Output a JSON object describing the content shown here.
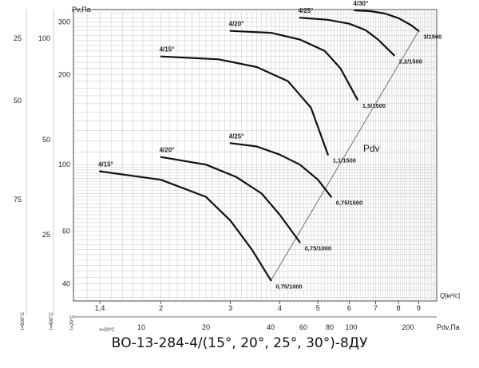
{
  "chart_data": {
    "type": "line",
    "title": "ВО-13-284-4/(15°, 20°, 25°, 30°)-8ДУ",
    "ylabel": "Pv,Па",
    "xlabel": "Q[м³/с]",
    "x2label": "Pdv,Па",
    "pdv_label": "Pdv",
    "xscale": "log",
    "yscale": "log",
    "xlim": [
      1.2,
      10
    ],
    "ylim": [
      35,
      330
    ],
    "x_ticks": [
      "1,4",
      "2",
      "3",
      "4",
      "5",
      "6",
      "7",
      "8",
      "9"
    ],
    "y_ticks": [
      "40",
      "60",
      "100",
      "200",
      "300"
    ],
    "y_ticks_small": [
      "25",
      "50",
      "100"
    ],
    "pdv_ticks": [
      "10",
      "20",
      "40",
      "60",
      "80",
      "100",
      "200"
    ],
    "far_axis_ticks": [
      "25",
      "50",
      "75"
    ],
    "temps": [
      "t=600°C",
      "t=400°C",
      "t=20°C",
      "t=20°C"
    ],
    "grid": true,
    "series": [
      {
        "name": "4/15°",
        "x": [
          1.4,
          2.0,
          2.6,
          3.0,
          3.4,
          3.8
        ],
        "y": [
          95,
          89,
          78,
          65,
          52,
          41
        ]
      },
      {
        "name": "4/20°",
        "x": [
          2.0,
          2.6,
          3.1,
          3.6,
          4.0,
          4.5
        ],
        "y": [
          106,
          100,
          91,
          80,
          68,
          55
        ]
      },
      {
        "name": "4/25°",
        "x": [
          3.0,
          3.5,
          4.0,
          4.5,
          5.0,
          5.4
        ],
        "y": [
          118,
          115,
          108,
          100,
          89,
          78
        ]
      },
      {
        "name": "4/15°",
        "x": [
          2.0,
          2.8,
          3.5,
          4.2,
          4.8,
          5.3
        ],
        "y": [
          230,
          225,
          212,
          190,
          155,
          108
        ]
      },
      {
        "name": "4/20°",
        "x": [
          3.0,
          3.8,
          4.5,
          5.2,
          5.7,
          6.3
        ],
        "y": [
          280,
          276,
          262,
          240,
          210,
          165
        ]
      },
      {
        "name": "4/25°",
        "x": [
          4.5,
          5.3,
          6.0,
          6.6,
          7.1,
          7.8
        ],
        "y": [
          310,
          305,
          296,
          282,
          262,
          232
        ]
      },
      {
        "name": "4/30°",
        "x": [
          6.2,
          6.8,
          7.4,
          8.0,
          8.6,
          9.0
        ],
        "y": [
          328,
          326,
          320,
          309,
          293,
          280
        ]
      }
    ],
    "annotations": [
      {
        "text": "0,75/1000",
        "x": 3.8,
        "y": 41
      },
      {
        "text": "0,75/1000",
        "x": 4.5,
        "y": 55
      },
      {
        "text": "0,75/1500",
        "x": 5.4,
        "y": 78
      },
      {
        "text": "1,1/1500",
        "x": 5.3,
        "y": 108
      },
      {
        "text": "1,5/1500",
        "x": 6.3,
        "y": 165
      },
      {
        "text": "2,2/1500",
        "x": 7.8,
        "y": 232
      },
      {
        "text": "3/1500",
        "x": 9.0,
        "y": 280
      }
    ]
  }
}
